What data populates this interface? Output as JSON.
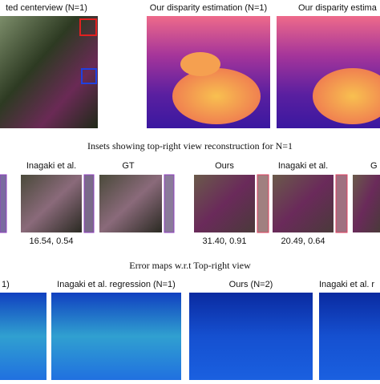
{
  "row1": {
    "labels": [
      "ted centerview (N=1)",
      "Our disparity estimation (N=1)",
      "Our disparity estima"
    ]
  },
  "row2": {
    "caption": "Insets showing top-right view reconstruction for N=1",
    "labels": [
      "Inagaki et al.",
      "GT",
      "Ours",
      "Inagaki et al.",
      "G"
    ],
    "scores": [
      "16.54, 0.54",
      "31.40, 0.91",
      "20.49, 0.64"
    ]
  },
  "row3": {
    "caption": "Error maps w.r.t Top-right view",
    "labels": [
      "1)",
      "Inagaki et al. regression (N=1)",
      "Ours (N=2)",
      "Inagaki et al. r"
    ]
  }
}
